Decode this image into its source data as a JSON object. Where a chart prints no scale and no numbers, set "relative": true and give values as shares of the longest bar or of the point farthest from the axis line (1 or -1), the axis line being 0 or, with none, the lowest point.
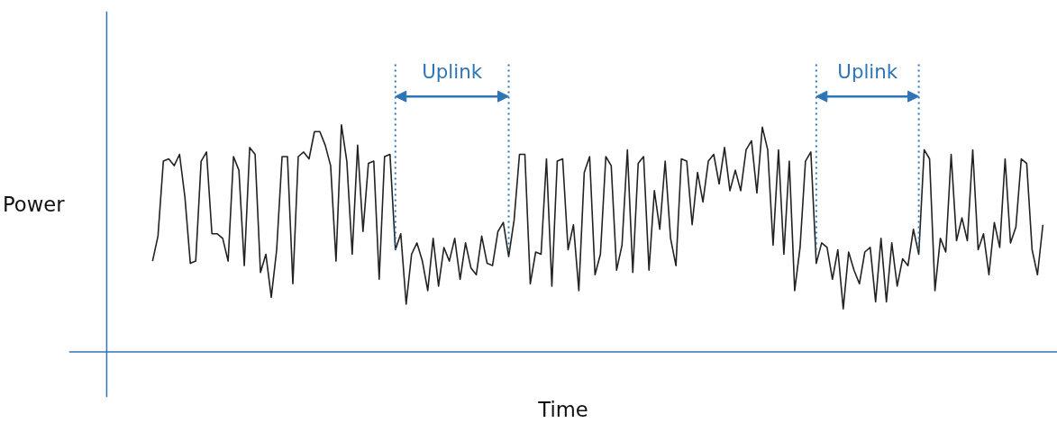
{
  "chart_data": {
    "type": "line",
    "relative": true,
    "xlabel": "Time",
    "ylabel": "Power",
    "categories": [
      null,
      null,
      null,
      null,
      null,
      null,
      null,
      null,
      null,
      null,
      null,
      null,
      null,
      null,
      null,
      null,
      null,
      null,
      null,
      null,
      null,
      null,
      null,
      null,
      null,
      null,
      null,
      null,
      null,
      null,
      null,
      null,
      null,
      null,
      null,
      null,
      null,
      null,
      null,
      null,
      null,
      null,
      null,
      null,
      null,
      null,
      null,
      null,
      null,
      null,
      null,
      null,
      null,
      null,
      null,
      null,
      null,
      null,
      null,
      null,
      null,
      null,
      null,
      null,
      null,
      null,
      null,
      null,
      null,
      null,
      null,
      null,
      null,
      null,
      null,
      null,
      null,
      null,
      null,
      null,
      null,
      null,
      null,
      null,
      null,
      null,
      null,
      null,
      null,
      null,
      null,
      null,
      null,
      null,
      null,
      null,
      null,
      null,
      null,
      null,
      null,
      null,
      null,
      null,
      null,
      null,
      null,
      null,
      null,
      null,
      null,
      null,
      null,
      null,
      null,
      null,
      null,
      null,
      null,
      null,
      null,
      null,
      null,
      null,
      null,
      null,
      null,
      null,
      null,
      null,
      null,
      null,
      null,
      null,
      null,
      null,
      null,
      null,
      null,
      null,
      null,
      null,
      null,
      null,
      null,
      null,
      null,
      null,
      null,
      null,
      null,
      null,
      null,
      null,
      null,
      null,
      null,
      null,
      null,
      null,
      null,
      null,
      null,
      null,
      null,
      null
    ],
    "series": [
      {
        "color": "#222222",
        "values": [
          0.4,
          0.51,
          0.84,
          0.85,
          0.82,
          0.87,
          0.68,
          0.39,
          0.4,
          0.84,
          0.88,
          0.52,
          0.52,
          0.5,
          0.4,
          0.86,
          0.8,
          0.38,
          0.9,
          0.87,
          0.35,
          0.43,
          0.24,
          0.45,
          0.86,
          0.86,
          0.3,
          0.86,
          0.88,
          0.85,
          0.97,
          0.97,
          0.91,
          0.82,
          0.4,
          1.0,
          0.84,
          0.43,
          0.91,
          0.53,
          0.83,
          0.84,
          0.32,
          0.86,
          0.87,
          0.45,
          0.52,
          0.21,
          0.43,
          0.48,
          0.4,
          0.27,
          0.5,
          0.29,
          0.46,
          0.4,
          0.5,
          0.32,
          0.48,
          0.37,
          0.34,
          0.51,
          0.39,
          0.38,
          0.53,
          0.57,
          0.42,
          0.58,
          0.87,
          0.87,
          0.3,
          0.44,
          0.43,
          0.85,
          0.29,
          0.84,
          0.85,
          0.45,
          0.56,
          0.27,
          0.79,
          0.86,
          0.34,
          0.43,
          0.86,
          0.82,
          0.36,
          0.47,
          0.89,
          0.35,
          0.83,
          0.86,
          0.36,
          0.71,
          0.54,
          0.84,
          0.5,
          0.38,
          0.85,
          0.84,
          0.56,
          0.79,
          0.66,
          0.84,
          0.87,
          0.74,
          0.9,
          0.71,
          0.8,
          0.71,
          0.89,
          0.93,
          0.7,
          0.99,
          0.89,
          0.47,
          0.89,
          0.43,
          0.84,
          0.27,
          0.46,
          0.84,
          0.88,
          0.39,
          0.48,
          0.46,
          0.32,
          0.45,
          0.19,
          0.44,
          0.36,
          0.3,
          0.44,
          0.46,
          0.22,
          0.5,
          0.22,
          0.48,
          0.29,
          0.41,
          0.38,
          0.54,
          0.43,
          0.89,
          0.85,
          0.27,
          0.5,
          0.44,
          0.87,
          0.49,
          0.59,
          0.49,
          0.89,
          0.45,
          0.52,
          0.34,
          0.57,
          0.46,
          0.85,
          0.48,
          0.55,
          0.85,
          0.83,
          0.45,
          0.34,
          0.56
        ]
      }
    ],
    "annotations": [
      "Uplink",
      "Uplink"
    ]
  }
}
